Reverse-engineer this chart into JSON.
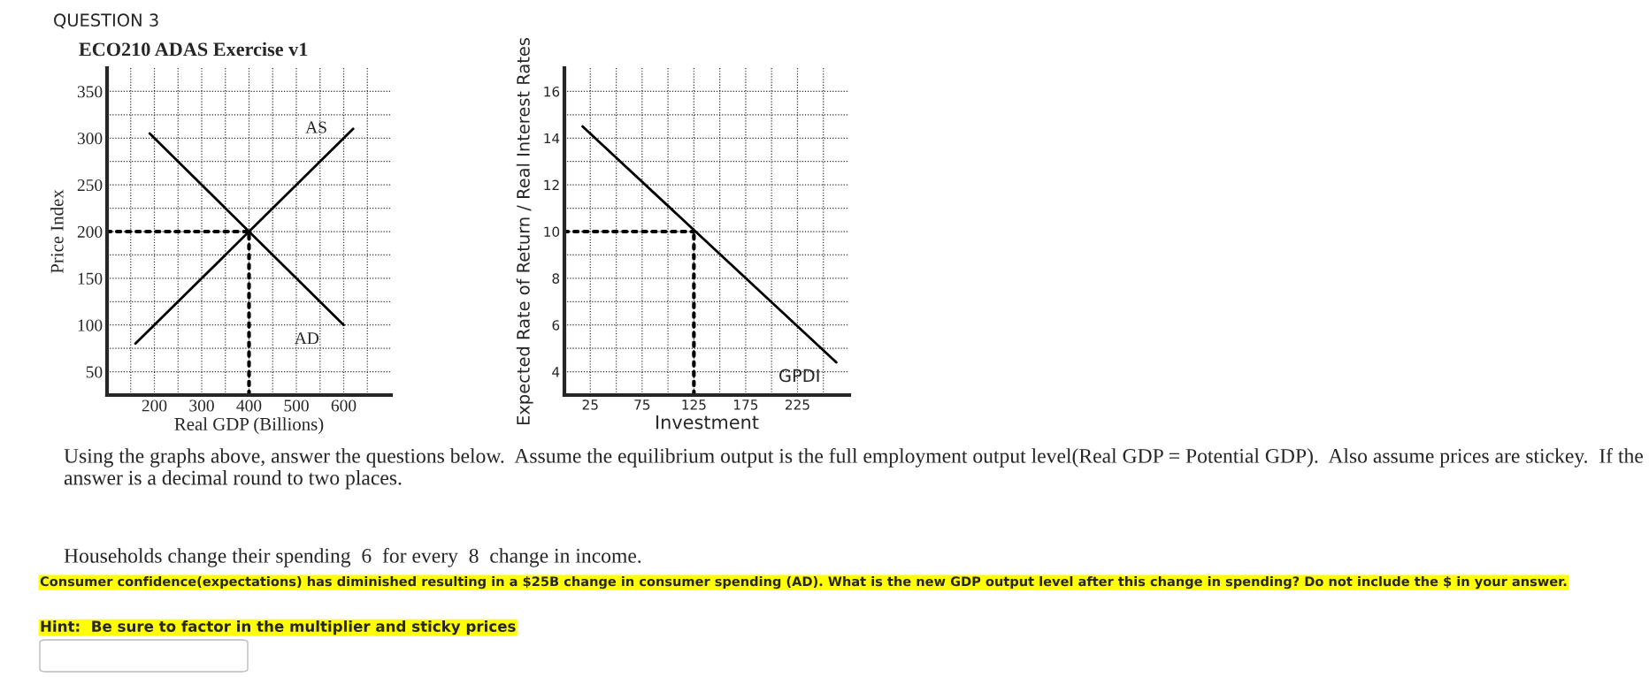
{
  "chart_data": [
    {
      "type": "line",
      "title": "ECO210 ADAS Exercise v1",
      "xlabel": "Real GDP (Billions)",
      "ylabel": "Price Index",
      "xlim": [
        100,
        700
      ],
      "ylim": [
        25,
        375
      ],
      "xticks": [
        {
          "value": 150,
          "label": null
        },
        200,
        {
          "value": 250,
          "label": null
        },
        300,
        {
          "value": 350,
          "label": null
        },
        400,
        {
          "value": 450,
          "label": null
        },
        500,
        {
          "value": 550,
          "label": null
        },
        600,
        {
          "value": 650,
          "label": null
        }
      ],
      "yticks": [
        50,
        {
          "value": 75,
          "label": null
        },
        100,
        {
          "value": 125,
          "label": null
        },
        150,
        {
          "value": 175,
          "label": null
        },
        200,
        {
          "value": 225,
          "label": null
        },
        250,
        {
          "value": 275,
          "label": null
        },
        300,
        {
          "value": 325,
          "label": null
        },
        350
      ],
      "grid": true,
      "marker": "none",
      "series": [
        {
          "name": "AD",
          "color": "#000000",
          "line_style": "solid",
          "x": [
            190,
            600
          ],
          "values": [
            305,
            100
          ]
        },
        {
          "name": "AS",
          "color": "#000000",
          "line_style": "solid",
          "x": [
            160,
            620
          ],
          "values": [
            80,
            310
          ]
        },
        {
          "color": "#000000",
          "line_style": "dotted",
          "x": [
            100,
            400
          ],
          "values": [
            200,
            200
          ]
        },
        {
          "color": "#000000",
          "line_style": "dotted",
          "x": [
            400,
            400
          ],
          "values": [
            25,
            200
          ]
        }
      ],
      "annotations": [
        "QUESTION 3",
        "Using the graphs above, answer the questions below.  Assume the equilibrium output is the full employment output level(Real GDP = Potential GDP).  Also assume prices are stickey.  If the answer is a decimal round to two places.",
        "Households change their spending  6  for every  8  change in income.",
        "Consumer confidence(expectations) has diminished resulting in a $25B change in consumer spending (AD). What is the new GDP output level after this change in spending? Do not include the $ in your answer.",
        "Hint:  Be sure to factor in the multiplier and sticky prices"
      ]
    },
    {
      "type": "line",
      "xlabel": "Investment",
      "ylabel": "Expected Rate of Return / Real Interest Rates",
      "xlim": [
        0,
        275
      ],
      "ylim": [
        3,
        17
      ],
      "xticks": [
        25,
        {
          "value": 50,
          "label": null
        },
        75,
        {
          "value": 100,
          "label": null
        },
        125,
        {
          "value": 150,
          "label": null
        },
        175,
        {
          "value": 200,
          "label": null
        },
        225,
        {
          "value": 250,
          "label": null
        }
      ],
      "yticks": [
        4,
        {
          "value": 5,
          "label": null
        },
        6,
        {
          "value": 7,
          "label": null
        },
        8,
        {
          "value": 9,
          "label": null
        },
        10,
        {
          "value": 11,
          "label": null
        },
        12,
        {
          "value": 13,
          "label": null
        },
        14,
        {
          "value": 15,
          "label": null
        },
        16
      ],
      "grid": true,
      "marker": "none",
      "series": [
        {
          "name": "GPDI",
          "color": "#000000",
          "line_style": "solid",
          "x": [
            17.5,
            262.5
          ],
          "values": [
            14.5,
            4.4
          ]
        },
        {
          "color": "#000000",
          "line_style": "dotted",
          "x": [
            0,
            125
          ],
          "values": [
            10,
            10
          ]
        },
        {
          "color": "#000000",
          "line_style": "dotted",
          "x": [
            125,
            125
          ],
          "values": [
            3,
            10
          ]
        }
      ]
    }
  ]
}
